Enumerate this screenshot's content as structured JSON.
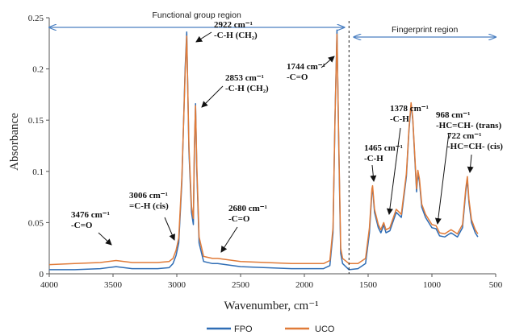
{
  "chart_data": {
    "type": "line",
    "xlabel": "Wavenumber, cm⁻¹",
    "ylabel": "Absorbance",
    "xlim": [
      4000,
      500
    ],
    "ylim": [
      0,
      0.25
    ],
    "x_reversed": true,
    "x_ticks": [
      "4000",
      "3500",
      "3000",
      "2500",
      "2000",
      "1500",
      "1000",
      "500"
    ],
    "y_ticks": [
      "0",
      "0.05",
      "0.1",
      "0.15",
      "0.2",
      "0.25"
    ],
    "grid": false,
    "legend_placement": "bottom",
    "series": [
      {
        "name": "FPO",
        "color": "#2f6db5",
        "points": [
          [
            4000,
            0.004
          ],
          [
            3800,
            0.004
          ],
          [
            3600,
            0.005
          ],
          [
            3476,
            0.007
          ],
          [
            3350,
            0.005
          ],
          [
            3150,
            0.005
          ],
          [
            3060,
            0.006
          ],
          [
            3030,
            0.01
          ],
          [
            3006,
            0.018
          ],
          [
            2985,
            0.03
          ],
          [
            2960,
            0.09
          ],
          [
            2935,
            0.2
          ],
          [
            2922,
            0.236
          ],
          [
            2905,
            0.12
          ],
          [
            2885,
            0.06
          ],
          [
            2870,
            0.048
          ],
          [
            2862,
            0.12
          ],
          [
            2853,
            0.166
          ],
          [
            2843,
            0.1
          ],
          [
            2825,
            0.03
          ],
          [
            2790,
            0.012
          ],
          [
            2720,
            0.01
          ],
          [
            2680,
            0.01
          ],
          [
            2500,
            0.007
          ],
          [
            2300,
            0.006
          ],
          [
            2100,
            0.005
          ],
          [
            1950,
            0.005
          ],
          [
            1850,
            0.005
          ],
          [
            1800,
            0.008
          ],
          [
            1775,
            0.04
          ],
          [
            1760,
            0.15
          ],
          [
            1744,
            0.238
          ],
          [
            1730,
            0.12
          ],
          [
            1715,
            0.02
          ],
          [
            1700,
            0.01
          ],
          [
            1650,
            0.004
          ],
          [
            1580,
            0.005
          ],
          [
            1520,
            0.01
          ],
          [
            1490,
            0.04
          ],
          [
            1470,
            0.08
          ],
          [
            1465,
            0.084
          ],
          [
            1450,
            0.06
          ],
          [
            1420,
            0.045
          ],
          [
            1400,
            0.04
          ],
          [
            1385,
            0.045
          ],
          [
            1378,
            0.048
          ],
          [
            1360,
            0.04
          ],
          [
            1330,
            0.042
          ],
          [
            1280,
            0.06
          ],
          [
            1240,
            0.055
          ],
          [
            1200,
            0.095
          ],
          [
            1180,
            0.14
          ],
          [
            1163,
            0.165
          ],
          [
            1150,
            0.15
          ],
          [
            1120,
            0.08
          ],
          [
            1110,
            0.098
          ],
          [
            1098,
            0.09
          ],
          [
            1080,
            0.065
          ],
          [
            1050,
            0.055
          ],
          [
            1000,
            0.045
          ],
          [
            968,
            0.044
          ],
          [
            940,
            0.037
          ],
          [
            900,
            0.036
          ],
          [
            850,
            0.04
          ],
          [
            800,
            0.036
          ],
          [
            760,
            0.045
          ],
          [
            735,
            0.08
          ],
          [
            722,
            0.092
          ],
          [
            710,
            0.07
          ],
          [
            690,
            0.05
          ],
          [
            660,
            0.04
          ],
          [
            640,
            0.036
          ]
        ]
      },
      {
        "name": "UCO",
        "color": "#e07b39",
        "points": [
          [
            4000,
            0.009
          ],
          [
            3800,
            0.01
          ],
          [
            3600,
            0.011
          ],
          [
            3476,
            0.013
          ],
          [
            3350,
            0.011
          ],
          [
            3150,
            0.011
          ],
          [
            3060,
            0.012
          ],
          [
            3030,
            0.015
          ],
          [
            3006,
            0.023
          ],
          [
            2985,
            0.035
          ],
          [
            2960,
            0.095
          ],
          [
            2935,
            0.195
          ],
          [
            2922,
            0.232
          ],
          [
            2905,
            0.125
          ],
          [
            2885,
            0.066
          ],
          [
            2870,
            0.054
          ],
          [
            2862,
            0.125
          ],
          [
            2853,
            0.164
          ],
          [
            2843,
            0.105
          ],
          [
            2825,
            0.036
          ],
          [
            2790,
            0.017
          ],
          [
            2720,
            0.015
          ],
          [
            2680,
            0.015
          ],
          [
            2500,
            0.012
          ],
          [
            2300,
            0.011
          ],
          [
            2100,
            0.01
          ],
          [
            1950,
            0.01
          ],
          [
            1850,
            0.01
          ],
          [
            1800,
            0.013
          ],
          [
            1775,
            0.045
          ],
          [
            1760,
            0.15
          ],
          [
            1744,
            0.234
          ],
          [
            1730,
            0.125
          ],
          [
            1715,
            0.025
          ],
          [
            1700,
            0.015
          ],
          [
            1650,
            0.01
          ],
          [
            1580,
            0.01
          ],
          [
            1520,
            0.015
          ],
          [
            1490,
            0.045
          ],
          [
            1470,
            0.083
          ],
          [
            1465,
            0.086
          ],
          [
            1450,
            0.063
          ],
          [
            1420,
            0.048
          ],
          [
            1400,
            0.043
          ],
          [
            1385,
            0.048
          ],
          [
            1378,
            0.05
          ],
          [
            1360,
            0.043
          ],
          [
            1330,
            0.045
          ],
          [
            1280,
            0.063
          ],
          [
            1240,
            0.058
          ],
          [
            1200,
            0.098
          ],
          [
            1180,
            0.142
          ],
          [
            1163,
            0.167
          ],
          [
            1150,
            0.152
          ],
          [
            1120,
            0.083
          ],
          [
            1110,
            0.101
          ],
          [
            1098,
            0.093
          ],
          [
            1080,
            0.068
          ],
          [
            1050,
            0.058
          ],
          [
            1000,
            0.048
          ],
          [
            968,
            0.047
          ],
          [
            940,
            0.04
          ],
          [
            900,
            0.039
          ],
          [
            850,
            0.043
          ],
          [
            800,
            0.039
          ],
          [
            760,
            0.048
          ],
          [
            735,
            0.083
          ],
          [
            722,
            0.095
          ],
          [
            710,
            0.073
          ],
          [
            690,
            0.053
          ],
          [
            660,
            0.043
          ],
          [
            640,
            0.039
          ]
        ]
      }
    ],
    "regions": [
      {
        "label": "Functional group region",
        "from": 4000,
        "to": 1650
      },
      {
        "label": "Fingerprint region",
        "from": 1650,
        "to": 500
      }
    ],
    "region_divider_x": 1650,
    "annotations": [
      {
        "lines": [
          "3476 cm⁻¹",
          "-C=O"
        ],
        "x": 3476,
        "y": 0.011
      },
      {
        "lines": [
          "3006 cm⁻¹",
          "=C-H (cis)"
        ],
        "x": 3006,
        "y": 0.02
      },
      {
        "lines": [
          "2922 cm⁻¹",
          "-C-H (CH₂)"
        ],
        "x": 2922,
        "y": 0.23
      },
      {
        "lines": [
          "2853 cm⁻¹",
          "-C-H (CH₂)"
        ],
        "x": 2853,
        "y": 0.16
      },
      {
        "lines": [
          "2680 cm⁻¹",
          "-C=O"
        ],
        "x": 2680,
        "y": 0.013
      },
      {
        "lines": [
          "1744 cm⁻¹",
          "-C=O"
        ],
        "x": 1744,
        "y": 0.232
      },
      {
        "lines": [
          "1465 cm⁻¹",
          "-C-H"
        ],
        "x": 1465,
        "y": 0.084
      },
      {
        "lines": [
          "1378 cm⁻¹",
          "-C-H"
        ],
        "x": 1378,
        "y": 0.052
      },
      {
        "lines": [
          "968 cm⁻¹",
          "-HC=CH- (trans)"
        ],
        "x": 968,
        "y": 0.048
      },
      {
        "lines": [
          "722 cm⁻¹",
          "-HC=CH- (cis)"
        ],
        "x": 722,
        "y": 0.098
      }
    ]
  }
}
